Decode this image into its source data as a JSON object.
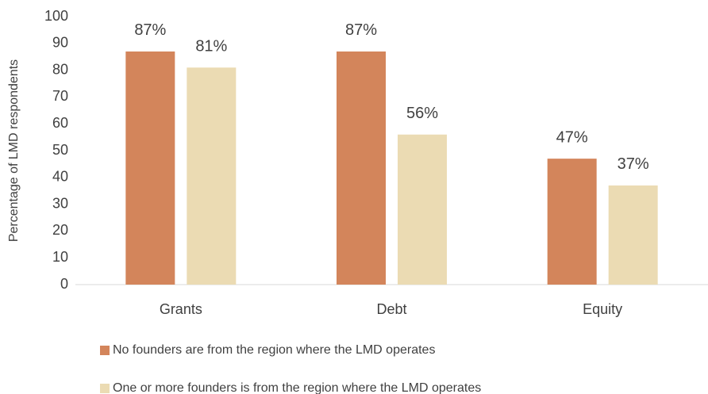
{
  "chart_data": {
    "type": "bar",
    "y_axis_label": "Percentage of LMD respondents",
    "categories": [
      "Grants",
      "Debt",
      "Equity"
    ],
    "series": [
      {
        "name": "No founders are from the region where the LMD operates",
        "color": "#d3855b",
        "values": [
          87,
          87,
          47
        ],
        "value_labels": [
          "87%",
          "87%",
          "47%"
        ]
      },
      {
        "name": "One or more founders is from the region where the LMD operates",
        "color": "#ebdbb3",
        "values": [
          81,
          56,
          37
        ],
        "value_labels": [
          "81%",
          "56%",
          "37%"
        ]
      }
    ],
    "ylim": [
      0,
      100
    ],
    "yticks": [
      0,
      10,
      20,
      30,
      40,
      50,
      60,
      70,
      80,
      90,
      100
    ],
    "grid": false,
    "legend": "bottom"
  }
}
